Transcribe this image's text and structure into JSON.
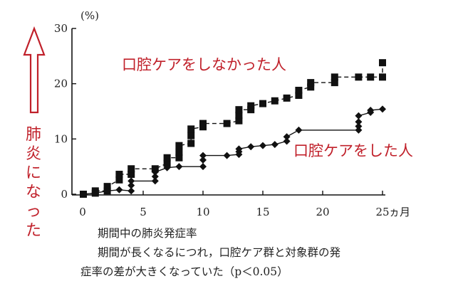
{
  "chart_data": {
    "type": "scatter",
    "y_unit": "(%)",
    "x_unit": "ヵ月",
    "xlim": [
      0,
      25
    ],
    "ylim": [
      0,
      30
    ],
    "x_ticks": [
      "0",
      "5",
      "10",
      "15",
      "20",
      "25"
    ],
    "y_ticks": [
      "0",
      "10",
      "20",
      "30"
    ],
    "series": [
      {
        "name": "口腔ケアをしなかった人",
        "marker": "square",
        "color": "#111111",
        "points": [
          [
            0,
            0
          ],
          [
            1,
            0.2
          ],
          [
            1,
            0.6
          ],
          [
            2,
            0.6
          ],
          [
            2,
            1.4
          ],
          [
            3,
            2.6
          ],
          [
            3,
            3.6
          ],
          [
            4,
            3.6
          ],
          [
            4,
            4.6
          ],
          [
            6,
            4.6
          ],
          [
            7,
            5.6
          ],
          [
            7,
            6.6
          ],
          [
            8,
            6.6
          ],
          [
            8,
            7.6
          ],
          [
            8,
            8.8
          ],
          [
            9,
            9.2
          ],
          [
            9,
            10.6
          ],
          [
            9,
            11.8
          ],
          [
            10,
            12.2
          ],
          [
            10,
            12.8
          ],
          [
            12,
            12.8
          ],
          [
            13,
            13.3
          ],
          [
            13,
            14.3
          ],
          [
            13,
            15.3
          ],
          [
            14,
            15.3
          ],
          [
            14,
            16
          ],
          [
            15,
            16.4
          ],
          [
            16,
            16.9
          ],
          [
            17,
            17.4
          ],
          [
            18,
            17.9
          ],
          [
            18,
            18.8
          ],
          [
            19,
            19.4
          ],
          [
            19,
            20.2
          ],
          [
            21,
            20.2
          ],
          [
            21,
            21.2
          ],
          [
            23,
            21.2
          ],
          [
            24,
            21.2
          ],
          [
            25,
            21.2
          ],
          [
            25,
            23.8
          ]
        ]
      },
      {
        "name": "口腔ケアをした人",
        "marker": "diamond",
        "color": "#111111",
        "points": [
          [
            0,
            0
          ],
          [
            1,
            0.2
          ],
          [
            2,
            0.6
          ],
          [
            3,
            0.8
          ],
          [
            4,
            0.6
          ],
          [
            4,
            1.6
          ],
          [
            4,
            2.4
          ],
          [
            6,
            2.4
          ],
          [
            6,
            3.2
          ],
          [
            6,
            4.0
          ],
          [
            7,
            4.8
          ],
          [
            8,
            5.0
          ],
          [
            10,
            5.0
          ],
          [
            10,
            6.2
          ],
          [
            10,
            7.0
          ],
          [
            12,
            7.0
          ],
          [
            13,
            7.2
          ],
          [
            13,
            7.7
          ],
          [
            13,
            8.2
          ],
          [
            14,
            8.6
          ],
          [
            15,
            8.8
          ],
          [
            16,
            9.0
          ],
          [
            17,
            9.6
          ],
          [
            17,
            10.4
          ],
          [
            18,
            11.6
          ],
          [
            23,
            11.6
          ],
          [
            23,
            12.3
          ],
          [
            23,
            13.1
          ],
          [
            23,
            14.2
          ],
          [
            24,
            14.8
          ],
          [
            24,
            15.2
          ],
          [
            25,
            15.4
          ]
        ]
      }
    ],
    "annotations": {
      "no_care": "口腔ケアをしなかった人",
      "care": "口腔ケアをした人"
    }
  },
  "side_label": [
    "肺",
    "炎",
    "に",
    "な",
    "っ",
    "た"
  ],
  "caption": {
    "line1": "期間中の肺炎発症率",
    "line2": "期間が長くなるにつれ，口腔ケア群と対象群の発",
    "line3": "症率の差が大きくなっていた（p＜0.05）"
  }
}
